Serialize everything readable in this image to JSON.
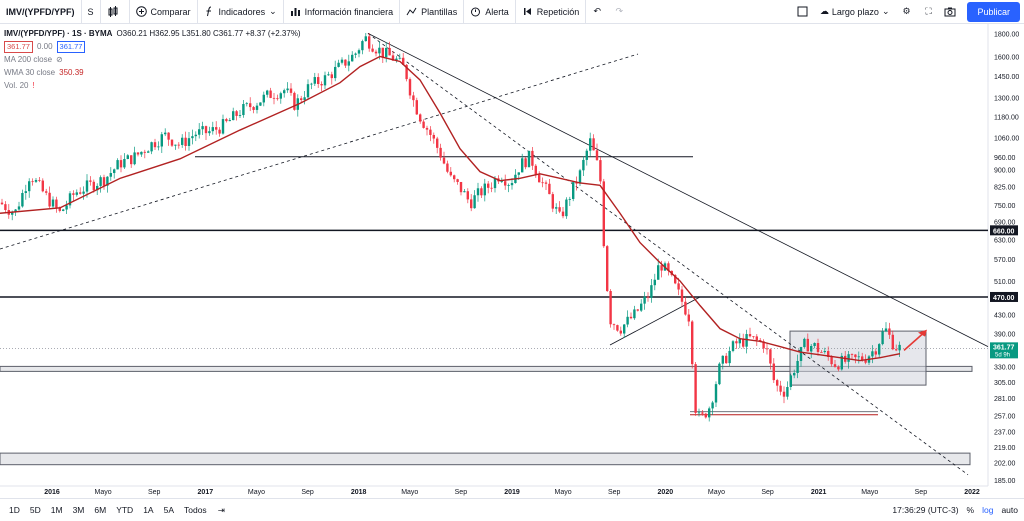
{
  "toolbar": {
    "symbol": "IMV/(YPFD/YPF)",
    "interval": "S",
    "compare": "Comparar",
    "indicators": "Indicadores",
    "financials": "Información financiera",
    "templates": "Plantillas",
    "alert": "Alerta",
    "replay": "Repetición",
    "layout": "Largo plazo",
    "publish": "Publicar"
  },
  "legend": {
    "title": "IMV/(YPFD/YPF) · 1S · BYMA",
    "ohlc": "O360.21 H362.95 L351.80 C361.77 +8.37 (+2.37%)",
    "bid": "361.77",
    "spread": "0.00",
    "ask": "361.77",
    "ma200": "MA 200 close",
    "wma30": "WMA 30 close",
    "wma30_value": "350.39",
    "vol": "Vol. 20"
  },
  "bottom": {
    "ranges": [
      "1D",
      "5D",
      "1M",
      "3M",
      "6M",
      "YTD",
      "1A",
      "5A",
      "Todos"
    ],
    "time": "17:36:29 (UTC-3)",
    "pct": "%",
    "log": "log",
    "auto": "auto"
  },
  "chart_data": {
    "type": "candlestick",
    "scale": "log",
    "ylim": [
      185,
      1850
    ],
    "price_ticks": [
      1800,
      1600,
      1450,
      1300,
      1180,
      1060,
      960,
      900,
      825,
      750,
      690,
      630,
      570,
      510,
      430,
      390,
      360,
      330,
      305,
      281,
      257,
      237,
      219,
      202,
      185
    ],
    "time_ticks": [
      "2016",
      "Mayo",
      "Sep",
      "2017",
      "Mayo",
      "Sep",
      "2018",
      "Mayo",
      "Sep",
      "2019",
      "Mayo",
      "Sep",
      "2020",
      "Mayo",
      "Sep",
      "2021",
      "Mayo",
      "Sep",
      "2022"
    ],
    "price_labels": [
      {
        "price": 660,
        "text": "660.00"
      },
      {
        "price": 470,
        "text": "470.00"
      }
    ],
    "last_price": {
      "price": 361.77,
      "text": "361.77",
      "sub": "5d 9h"
    },
    "close_path": [
      [
        0,
        760
      ],
      [
        15,
        720
      ],
      [
        30,
        880
      ],
      [
        45,
        790
      ],
      [
        60,
        720
      ],
      [
        75,
        800
      ],
      [
        90,
        830
      ],
      [
        105,
        860
      ],
      [
        120,
        930
      ],
      [
        135,
        960
      ],
      [
        150,
        1020
      ],
      [
        165,
        1070
      ],
      [
        180,
        1020
      ],
      [
        195,
        1080
      ],
      [
        210,
        1090
      ],
      [
        225,
        1130
      ],
      [
        240,
        1210
      ],
      [
        255,
        1260
      ],
      [
        270,
        1320
      ],
      [
        285,
        1350
      ],
      [
        295,
        1250
      ],
      [
        310,
        1380
      ],
      [
        325,
        1430
      ],
      [
        340,
        1520
      ],
      [
        355,
        1620
      ],
      [
        365,
        1760
      ],
      [
        375,
        1680
      ],
      [
        385,
        1620
      ],
      [
        395,
        1580
      ],
      [
        405,
        1500
      ],
      [
        412,
        1300
      ],
      [
        420,
        1180
      ],
      [
        430,
        1080
      ],
      [
        440,
        980
      ],
      [
        450,
        860
      ],
      [
        460,
        820
      ],
      [
        470,
        760
      ],
      [
        480,
        800
      ],
      [
        490,
        830
      ],
      [
        500,
        880
      ],
      [
        510,
        840
      ],
      [
        520,
        920
      ],
      [
        530,
        960
      ],
      [
        540,
        860
      ],
      [
        550,
        780
      ],
      [
        560,
        700
      ],
      [
        570,
        790
      ],
      [
        580,
        880
      ],
      [
        590,
        1040
      ],
      [
        600,
        880
      ],
      [
        605,
        560
      ],
      [
        610,
        420
      ],
      [
        620,
        400
      ],
      [
        635,
        430
      ],
      [
        650,
        480
      ],
      [
        660,
        560
      ],
      [
        670,
        520
      ],
      [
        680,
        470
      ],
      [
        690,
        420
      ],
      [
        695,
        270
      ],
      [
        700,
        250
      ],
      [
        710,
        270
      ],
      [
        720,
        330
      ],
      [
        735,
        370
      ],
      [
        750,
        380
      ],
      [
        765,
        370
      ],
      [
        775,
        300
      ],
      [
        785,
        290
      ],
      [
        795,
        330
      ],
      [
        805,
        370
      ],
      [
        815,
        365
      ],
      [
        825,
        350
      ],
      [
        835,
        335
      ],
      [
        850,
        340
      ],
      [
        865,
        345
      ],
      [
        875,
        360
      ],
      [
        885,
        400
      ],
      [
        895,
        365
      ],
      [
        900,
        362
      ]
    ],
    "wma30_path": [
      [
        0,
        720
      ],
      [
        60,
        740
      ],
      [
        120,
        860
      ],
      [
        180,
        950
      ],
      [
        240,
        1100
      ],
      [
        300,
        1260
      ],
      [
        340,
        1400
      ],
      [
        360,
        1520
      ],
      [
        380,
        1600
      ],
      [
        400,
        1560
      ],
      [
        420,
        1420
      ],
      [
        440,
        1200
      ],
      [
        460,
        1000
      ],
      [
        480,
        890
      ],
      [
        500,
        850
      ],
      [
        520,
        860
      ],
      [
        540,
        880
      ],
      [
        560,
        860
      ],
      [
        580,
        840
      ],
      [
        600,
        830
      ],
      [
        620,
        720
      ],
      [
        640,
        620
      ],
      [
        660,
        560
      ],
      [
        680,
        510
      ],
      [
        700,
        450
      ],
      [
        720,
        400
      ],
      [
        740,
        380
      ],
      [
        760,
        375
      ],
      [
        780,
        365
      ],
      [
        800,
        355
      ],
      [
        820,
        350
      ],
      [
        840,
        345
      ],
      [
        860,
        340
      ],
      [
        880,
        345
      ],
      [
        900,
        352
      ]
    ],
    "annotations": {
      "horizontal_levels": [
        960,
        660,
        470
      ],
      "boxes": [
        {
          "from_price": 325,
          "to_price": 330
        },
        {
          "from_price": 200,
          "to_price": 210
        },
        {
          "price_top": 395,
          "price_bottom": 300
        }
      ],
      "support_line": 258,
      "arrow": "red"
    }
  }
}
